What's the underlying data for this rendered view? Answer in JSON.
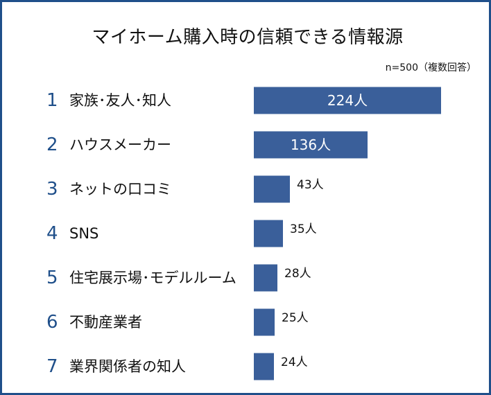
{
  "chart_data": {
    "type": "bar",
    "orientation": "horizontal",
    "title": "マイホーム購入時の信頼できる情報源",
    "note": "n=500（複数回答）",
    "unit": "人",
    "ranks": [
      "1",
      "2",
      "3",
      "4",
      "5",
      "6",
      "7"
    ],
    "categories": [
      "家族･友人･知人",
      "ハウスメーカー",
      "ネットの口コミ",
      "SNS",
      "住宅展示場･モデルルーム",
      "不動産業者",
      "業界関係者の知人"
    ],
    "values": [
      224,
      136,
      43,
      35,
      28,
      25,
      24
    ],
    "value_labels": [
      "224人",
      "136人",
      "43人",
      "35人",
      "28人",
      "25人",
      "24人"
    ],
    "xlim": [
      0,
      224
    ],
    "grid": false,
    "legend": "none",
    "colors": {
      "bar": "#3a5f9a",
      "rank": "#1f4f8a",
      "frame": "#1f4f8a"
    }
  }
}
